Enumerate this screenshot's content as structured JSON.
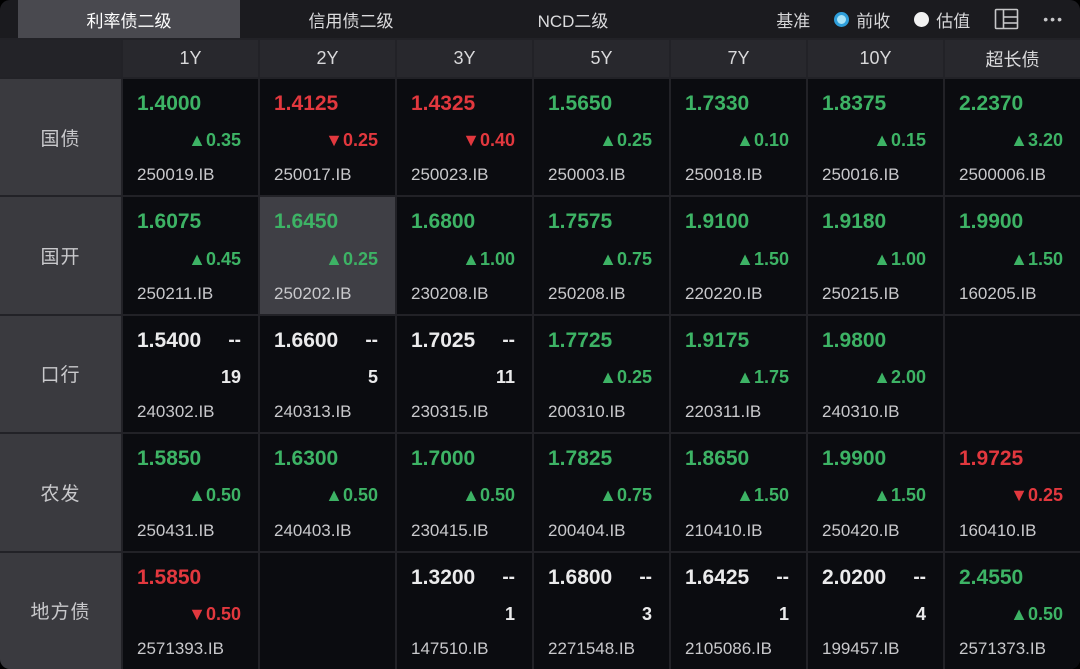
{
  "header": {
    "tabs": [
      {
        "label": "利率债二级",
        "active": true
      },
      {
        "label": "信用债二级",
        "active": false
      },
      {
        "label": "NCD二级",
        "active": false
      }
    ],
    "benchmark_label": "基准",
    "radios": [
      {
        "label": "前收",
        "selected": true
      },
      {
        "label": "估值",
        "selected": false
      }
    ],
    "more_glyph": "•••"
  },
  "colors": {
    "up_green": "#3db365",
    "down_red": "#e2383e",
    "neutral_white": "#ebebec",
    "accent_blue": "#2e9fdb",
    "highlight_cell": "#3f3f45"
  },
  "table": {
    "tenors": [
      "1Y",
      "2Y",
      "3Y",
      "5Y",
      "7Y",
      "10Y",
      "超长债"
    ],
    "rows": [
      {
        "label": "国债",
        "cells": [
          {
            "price": "1.4000",
            "dir": "up",
            "change": "▲0.35",
            "code": "250019.IB"
          },
          {
            "price": "1.4125",
            "dir": "down",
            "change": "▼0.25",
            "code": "250017.IB"
          },
          {
            "price": "1.4325",
            "dir": "down",
            "change": "▼0.40",
            "code": "250023.IB"
          },
          {
            "price": "1.5650",
            "dir": "up",
            "change": "▲0.25",
            "code": "250003.IB"
          },
          {
            "price": "1.7330",
            "dir": "up",
            "change": "▲0.10",
            "code": "250018.IB"
          },
          {
            "price": "1.8375",
            "dir": "up",
            "change": "▲0.15",
            "code": "250016.IB"
          },
          {
            "price": "2.2370",
            "dir": "up",
            "change": "▲3.20",
            "code": "2500006.IB"
          }
        ]
      },
      {
        "label": "国开",
        "cells": [
          {
            "price": "1.6075",
            "dir": "up",
            "change": "▲0.45",
            "code": "250211.IB"
          },
          {
            "price": "1.6450",
            "dir": "up",
            "change": "▲0.25",
            "code": "250202.IB",
            "highlight": true
          },
          {
            "price": "1.6800",
            "dir": "up",
            "change": "▲1.00",
            "code": "230208.IB"
          },
          {
            "price": "1.7575",
            "dir": "up",
            "change": "▲0.75",
            "code": "250208.IB"
          },
          {
            "price": "1.9100",
            "dir": "up",
            "change": "▲1.50",
            "code": "220220.IB"
          },
          {
            "price": "1.9180",
            "dir": "up",
            "change": "▲1.00",
            "code": "250215.IB"
          },
          {
            "price": "1.9900",
            "dir": "up",
            "change": "▲1.50",
            "code": "160205.IB"
          }
        ]
      },
      {
        "label": "口行",
        "cells": [
          {
            "price": "1.5400",
            "dir": "flat",
            "dash": "--",
            "count": "19",
            "code": "240302.IB"
          },
          {
            "price": "1.6600",
            "dir": "flat",
            "dash": "--",
            "count": "5",
            "code": "240313.IB"
          },
          {
            "price": "1.7025",
            "dir": "flat",
            "dash": "--",
            "count": "11",
            "code": "230315.IB"
          },
          {
            "price": "1.7725",
            "dir": "up",
            "change": "▲0.25",
            "code": "200310.IB"
          },
          {
            "price": "1.9175",
            "dir": "up",
            "change": "▲1.75",
            "code": "220311.IB"
          },
          {
            "price": "1.9800",
            "dir": "up",
            "change": "▲2.00",
            "code": "240310.IB"
          },
          {
            "empty": true
          }
        ]
      },
      {
        "label": "农发",
        "cells": [
          {
            "price": "1.5850",
            "dir": "up",
            "change": "▲0.50",
            "code": "250431.IB"
          },
          {
            "price": "1.6300",
            "dir": "up",
            "change": "▲0.50",
            "code": "240403.IB"
          },
          {
            "price": "1.7000",
            "dir": "up",
            "change": "▲0.50",
            "code": "230415.IB"
          },
          {
            "price": "1.7825",
            "dir": "up",
            "change": "▲0.75",
            "code": "200404.IB"
          },
          {
            "price": "1.8650",
            "dir": "up",
            "change": "▲1.50",
            "code": "210410.IB"
          },
          {
            "price": "1.9900",
            "dir": "up",
            "change": "▲1.50",
            "code": "250420.IB"
          },
          {
            "price": "1.9725",
            "dir": "down",
            "change": "▼0.25",
            "code": "160410.IB"
          }
        ]
      },
      {
        "label": "地方债",
        "cells": [
          {
            "price": "1.5850",
            "dir": "down",
            "change": "▼0.50",
            "code": "2571393.IB"
          },
          {
            "empty": true
          },
          {
            "price": "1.3200",
            "dir": "flat",
            "dash": "--",
            "count": "1",
            "code": "147510.IB"
          },
          {
            "price": "1.6800",
            "dir": "flat",
            "dash": "--",
            "count": "3",
            "code": "2271548.IB"
          },
          {
            "price": "1.6425",
            "dir": "flat",
            "dash": "--",
            "count": "1",
            "code": "2105086.IB"
          },
          {
            "price": "2.0200",
            "dir": "flat",
            "dash": "--",
            "count": "4",
            "code": "199457.IB"
          },
          {
            "price": "2.4550",
            "dir": "up",
            "change": "▲0.50",
            "code": "2571373.IB"
          }
        ]
      }
    ]
  }
}
